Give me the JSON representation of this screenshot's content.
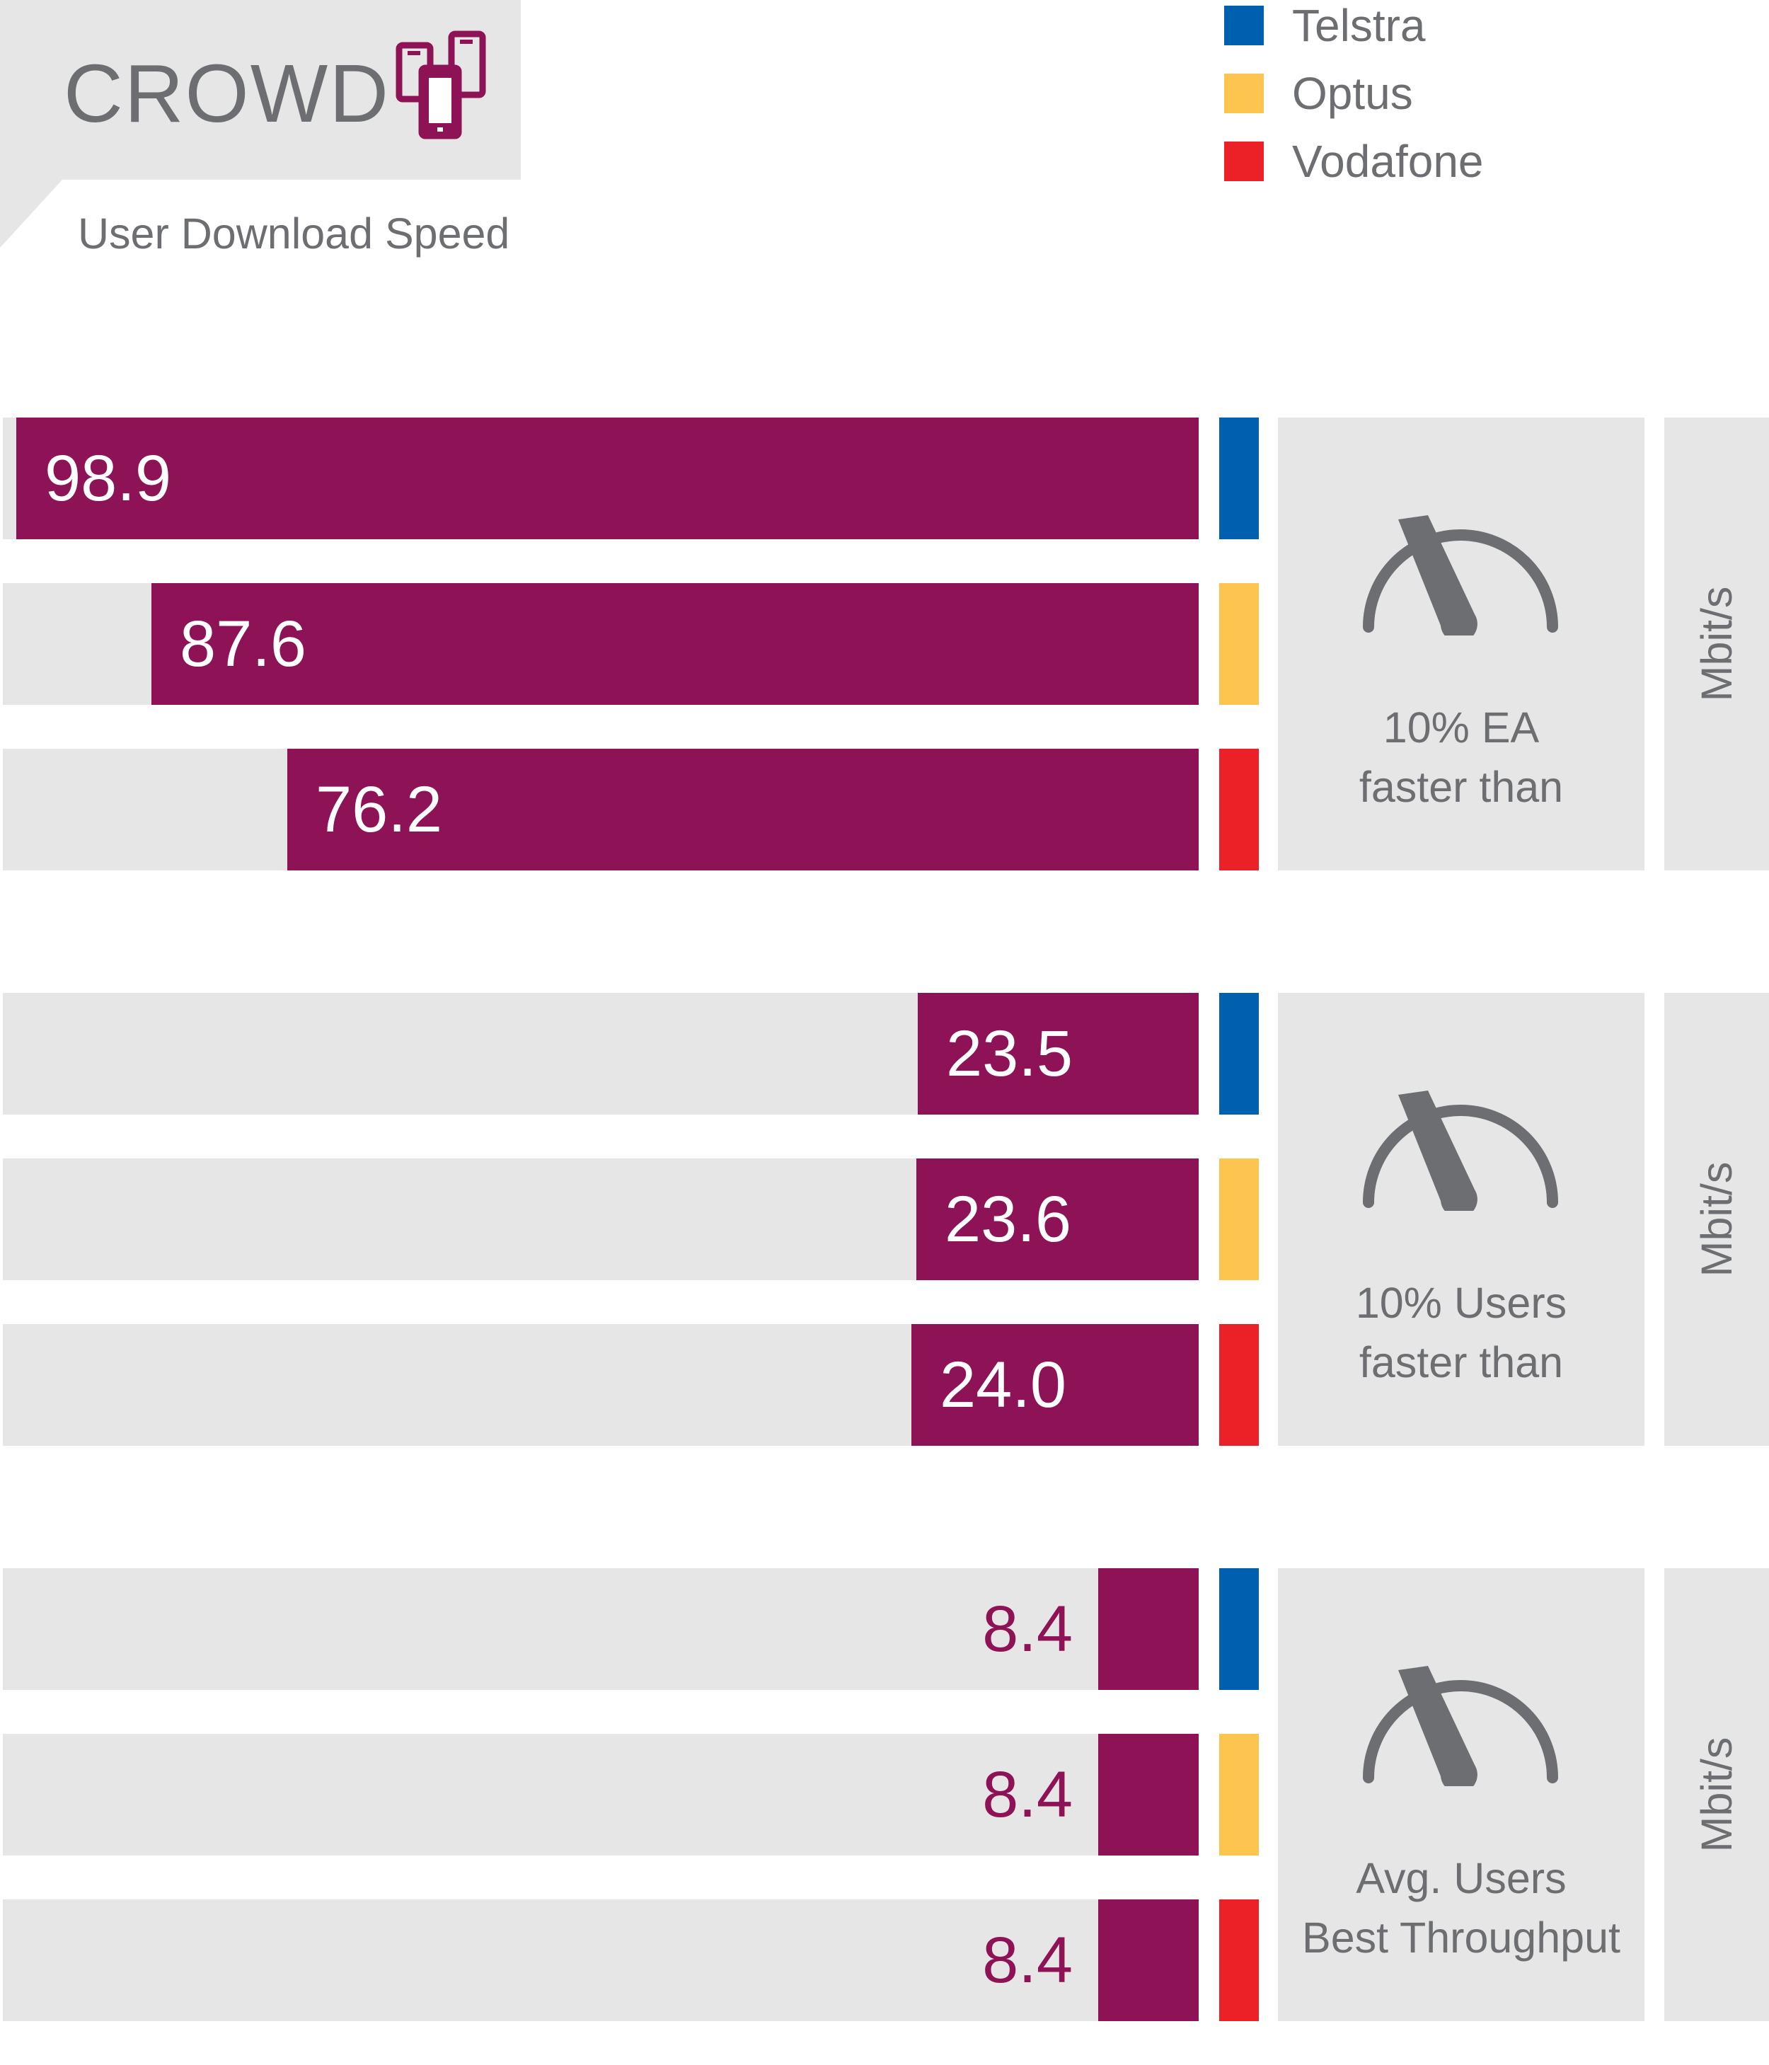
{
  "header": {
    "title": "CROWD",
    "subtitle": "User Download Speed",
    "icon": "mobile-phones-icon"
  },
  "colors": {
    "bar": "#8e1256",
    "track": "#e6e6e6",
    "text_gray": "#6d6e71"
  },
  "legend": [
    {
      "label": "Telstra",
      "color": "#0060b0"
    },
    {
      "label": "Optus",
      "color": "#fdc44f"
    },
    {
      "label": "Vodafone",
      "color": "#ec2127"
    }
  ],
  "chart_data": {
    "type": "bar",
    "orientation": "horizontal",
    "title": "User Download Speed",
    "series_names": [
      "Telstra",
      "Optus",
      "Vodafone"
    ],
    "groups": [
      {
        "label_line1": "10% EA",
        "label_line2": "faster than",
        "unit": "Mbit/s",
        "values": [
          98.9,
          87.6,
          76.2
        ],
        "display": [
          "98.9",
          "87.6",
          "76.2"
        ],
        "xlim": [
          0,
          100
        ]
      },
      {
        "label_line1": "10% Users",
        "label_line2": "faster than",
        "unit": "Mbit/s",
        "values": [
          23.5,
          23.6,
          24.0
        ],
        "display": [
          "23.5",
          "23.6",
          "24.0"
        ],
        "xlim": [
          0,
          100
        ]
      },
      {
        "label_line1": "Avg. Users",
        "label_line2": "Best Throughput",
        "unit": "Mbit/s",
        "values": [
          8.4,
          8.4,
          8.4
        ],
        "display": [
          "8.4",
          "8.4",
          "8.4"
        ],
        "xlim": [
          0,
          100
        ]
      }
    ]
  }
}
